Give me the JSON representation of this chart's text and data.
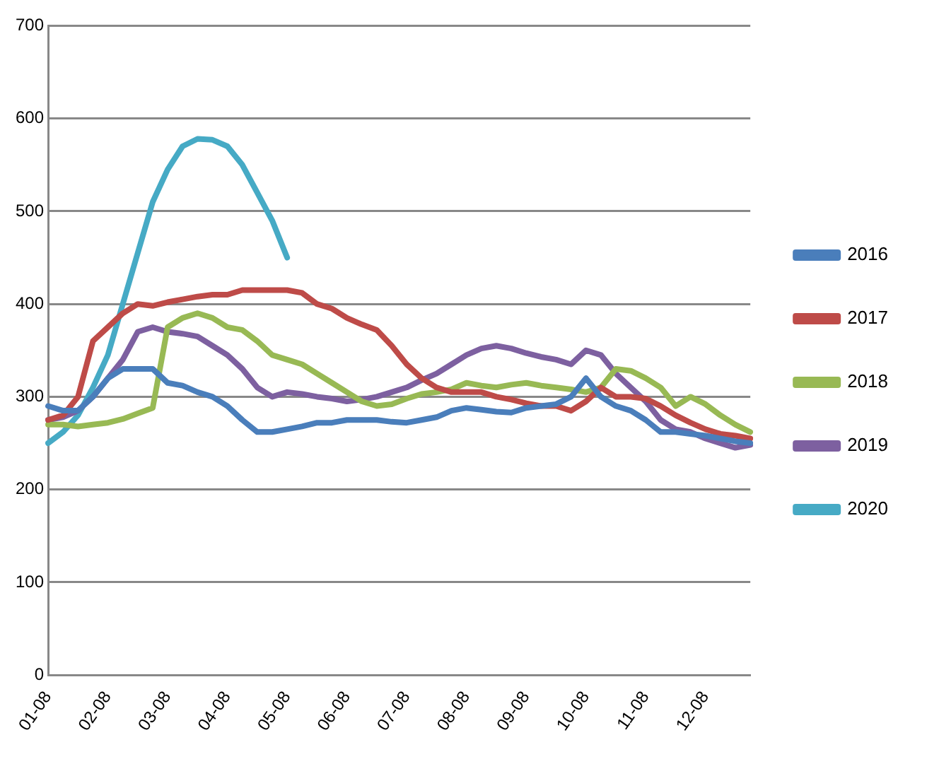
{
  "chart_data": {
    "type": "line",
    "categories": [
      "01-08",
      null,
      null,
      null,
      "02-08",
      null,
      null,
      null,
      "03-08",
      null,
      null,
      null,
      "04-08",
      null,
      null,
      null,
      "05-08",
      null,
      null,
      null,
      "06-08",
      null,
      null,
      null,
      "07-08",
      null,
      null,
      null,
      "08-08",
      null,
      null,
      null,
      "09-08",
      null,
      null,
      null,
      "10-08",
      null,
      null,
      null,
      "11-08",
      null,
      null,
      null,
      "12-08",
      null,
      null,
      null
    ],
    "series": [
      {
        "name": "2016",
        "color": "#4a7ebb",
        "values": [
          290,
          285,
          285,
          300,
          320,
          330,
          330,
          330,
          315,
          312,
          305,
          300,
          290,
          275,
          262,
          262,
          265,
          268,
          272,
          272,
          275,
          275,
          275,
          273,
          272,
          275,
          278,
          285,
          288,
          286,
          284,
          283,
          288,
          290,
          292,
          300,
          320,
          300,
          290,
          285,
          275,
          262,
          262,
          260,
          258,
          255,
          252,
          250
        ]
      },
      {
        "name": "2017",
        "color": "#be4b48",
        "values": [
          275,
          280,
          300,
          360,
          375,
          390,
          400,
          398,
          402,
          405,
          408,
          410,
          410,
          415,
          415,
          415,
          415,
          412,
          400,
          395,
          385,
          378,
          372,
          355,
          335,
          320,
          310,
          305,
          305,
          305,
          300,
          297,
          293,
          290,
          290,
          285,
          295,
          310,
          300,
          300,
          298,
          290,
          280,
          272,
          265,
          260,
          258,
          255
        ]
      },
      {
        "name": "2018",
        "color": "#98b954",
        "values": [
          270,
          270,
          268,
          270,
          272,
          276,
          282,
          288,
          375,
          385,
          390,
          385,
          375,
          372,
          360,
          345,
          340,
          335,
          325,
          315,
          305,
          295,
          290,
          292,
          298,
          303,
          305,
          308,
          315,
          312,
          310,
          313,
          315,
          312,
          310,
          308,
          305,
          310,
          330,
          328,
          320,
          310,
          290,
          300,
          292,
          280,
          270,
          262
        ]
      },
      {
        "name": "2019",
        "color": "#7d60a0",
        "values": [
          275,
          278,
          285,
          300,
          320,
          340,
          370,
          375,
          370,
          368,
          365,
          355,
          345,
          330,
          310,
          300,
          305,
          303,
          300,
          298,
          295,
          297,
          300,
          305,
          310,
          318,
          325,
          335,
          345,
          352,
          355,
          352,
          347,
          343,
          340,
          335,
          350,
          345,
          325,
          310,
          295,
          275,
          265,
          262,
          255,
          250,
          245,
          248
        ]
      },
      {
        "name": "2020",
        "color": "#46aac5",
        "values": [
          250,
          262,
          280,
          310,
          345,
          400,
          455,
          510,
          545,
          570,
          578,
          577,
          570,
          550,
          520,
          490,
          450,
          null,
          null,
          null,
          null,
          null,
          null,
          null,
          null,
          null,
          null,
          null,
          null,
          null,
          null,
          null,
          null,
          null,
          null,
          null,
          null,
          null,
          null,
          null,
          null,
          null,
          null,
          null,
          null,
          null,
          null,
          null
        ]
      }
    ],
    "ylim": [
      0,
      700
    ],
    "yticks": [
      0,
      100,
      200,
      300,
      400,
      500,
      600,
      700
    ],
    "grid": "y",
    "legend": "right",
    "marker": "none",
    "line_style": "solid"
  }
}
